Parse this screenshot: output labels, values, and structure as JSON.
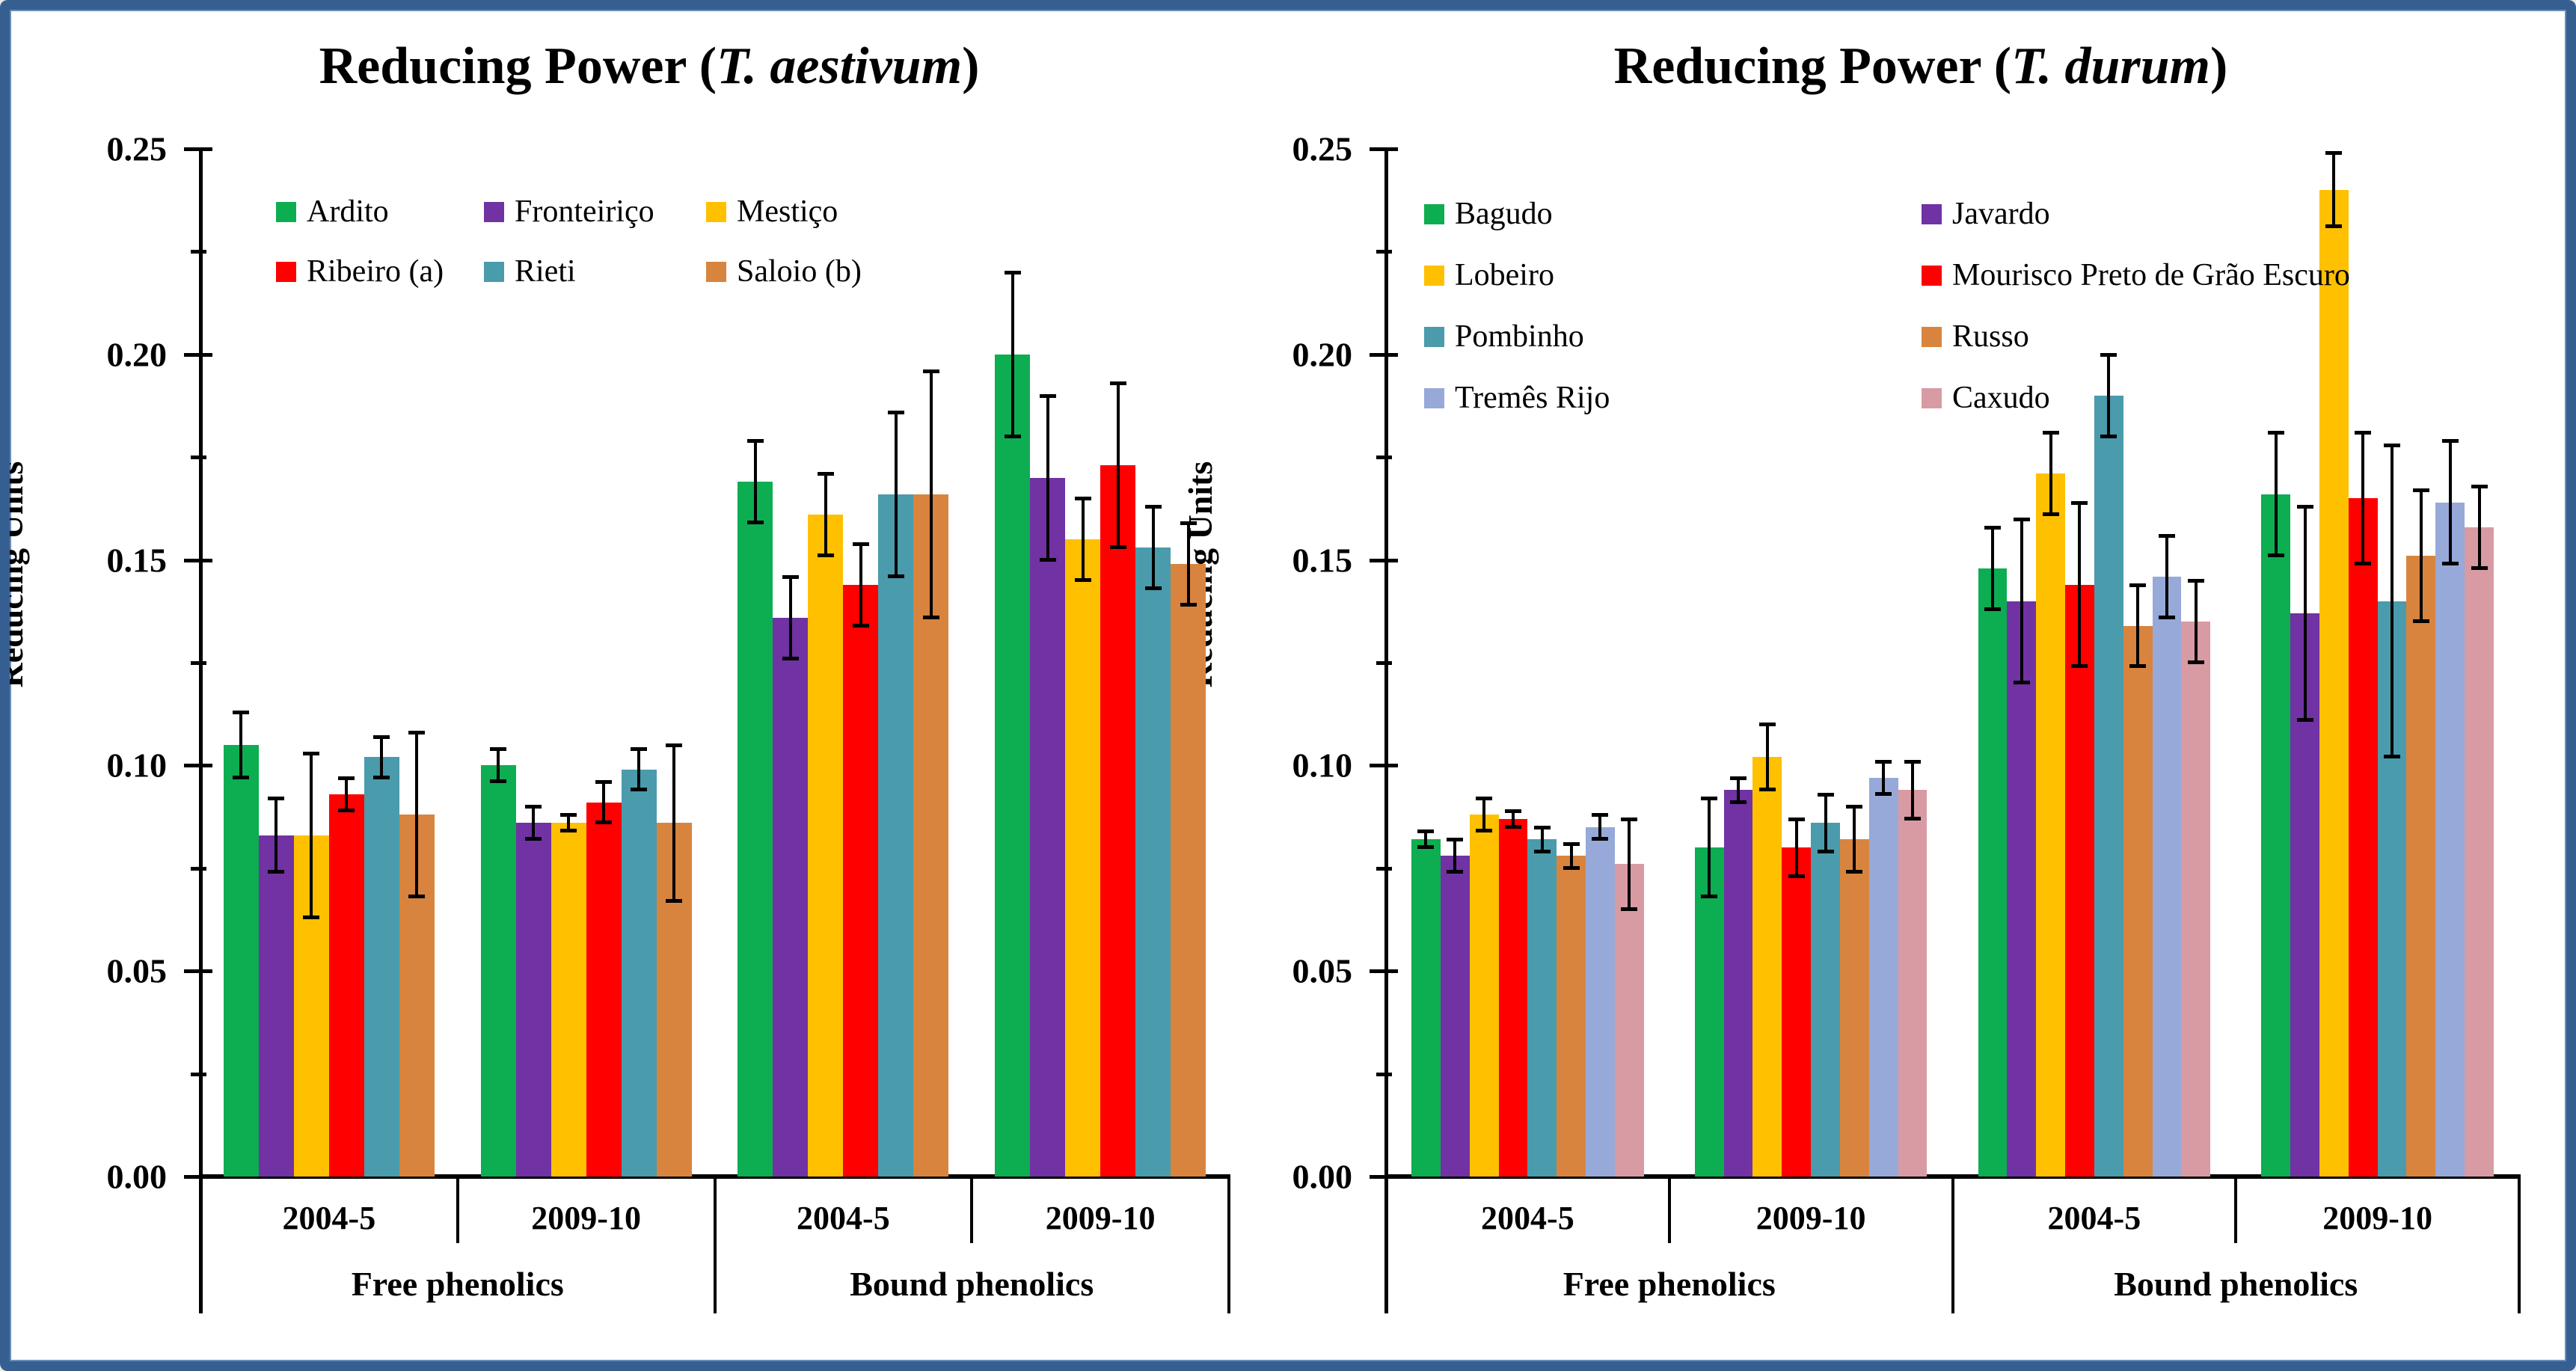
{
  "page": {
    "background": "#FFFFFF",
    "frame_border_color": "#365F91"
  },
  "chart_data": [
    {
      "type": "bar",
      "title_prefix": "Reducing Power (",
      "title_italic": "T. aestivum",
      "title_suffix": ")",
      "title": "Reducing Power (T. aestivum)",
      "xlabel": "",
      "ylabel": "Reducing Units",
      "ylim": [
        0,
        0.25
      ],
      "ytick_step": 0.05,
      "ytick_minor_step": 0.025,
      "ytick_decimals": 2,
      "ytick_labels": [
        "0.00",
        "0.05",
        "0.10",
        "0.15",
        "0.20",
        "0.25"
      ],
      "grid": false,
      "legend_position": "top-inside",
      "legend_columns": 3,
      "error_bars": true,
      "group_labels": [
        "2004-5",
        "2009-10",
        "2004-5",
        "2009-10"
      ],
      "super_group_labels": [
        "Free phenolics",
        "Bound phenolics"
      ],
      "series": [
        {
          "name": "Ardito",
          "color": "#0DAD52",
          "values": [
            0.105,
            0.1,
            0.169,
            0.2
          ],
          "errors": [
            0.008,
            0.004,
            0.01,
            0.02
          ]
        },
        {
          "name": "Fronteiriço",
          "color": "#7132A3",
          "values": [
            0.083,
            0.086,
            0.136,
            0.17
          ],
          "errors": [
            0.009,
            0.004,
            0.01,
            0.02
          ]
        },
        {
          "name": "Mestiço",
          "color": "#FFC000",
          "values": [
            0.083,
            0.086,
            0.161,
            0.155
          ],
          "errors": [
            0.02,
            0.002,
            0.01,
            0.01
          ]
        },
        {
          "name": "Ribeiro (a)",
          "color": "#FE0000",
          "values": [
            0.093,
            0.091,
            0.144,
            0.173
          ],
          "errors": [
            0.004,
            0.005,
            0.01,
            0.02
          ]
        },
        {
          "name": "Rieti",
          "color": "#4A9BAC",
          "values": [
            0.102,
            0.099,
            0.166,
            0.153
          ],
          "errors": [
            0.005,
            0.005,
            0.02,
            0.01
          ]
        },
        {
          "name": "Saloio (b)",
          "color": "#D8843E",
          "values": [
            0.088,
            0.086,
            0.166,
            0.149
          ],
          "errors": [
            0.02,
            0.019,
            0.03,
            0.01
          ]
        }
      ]
    },
    {
      "type": "bar",
      "title_prefix": "Reducing Power (",
      "title_italic": "T. durum",
      "title_suffix": ")",
      "title": "Reducing Power (T. durum)",
      "xlabel": "",
      "ylabel": "Reducing Units",
      "ylim": [
        0,
        0.25
      ],
      "ytick_step": 0.05,
      "ytick_minor_step": 0.025,
      "ytick_decimals": 2,
      "ytick_labels": [
        "0.00",
        "0.05",
        "0.10",
        "0.15",
        "0.20",
        "0.25"
      ],
      "grid": false,
      "legend_position": "top-inside",
      "legend_columns": 2,
      "error_bars": true,
      "group_labels": [
        "2004-5",
        "2009-10",
        "2004-5",
        "2009-10"
      ],
      "super_group_labels": [
        "Free phenolics",
        "Bound phenolics"
      ],
      "series": [
        {
          "name": "Bagudo",
          "color": "#0DAD52",
          "values": [
            0.082,
            0.08,
            0.148,
            0.166
          ],
          "errors": [
            0.002,
            0.012,
            0.01,
            0.015
          ]
        },
        {
          "name": "Javardo",
          "color": "#7132A3",
          "values": [
            0.078,
            0.094,
            0.14,
            0.137
          ],
          "errors": [
            0.004,
            0.003,
            0.02,
            0.026
          ]
        },
        {
          "name": "Lobeiro",
          "color": "#FFC000",
          "values": [
            0.088,
            0.102,
            0.171,
            0.24
          ],
          "errors": [
            0.004,
            0.008,
            0.01,
            0.009
          ]
        },
        {
          "name": "Mourisco Preto de Grão Escuro",
          "color": "#FE0000",
          "values": [
            0.087,
            0.08,
            0.144,
            0.165
          ],
          "errors": [
            0.002,
            0.007,
            0.02,
            0.016
          ]
        },
        {
          "name": "Pombinho",
          "color": "#4A9BAC",
          "values": [
            0.082,
            0.086,
            0.19,
            0.14
          ],
          "errors": [
            0.003,
            0.007,
            0.01,
            0.038
          ]
        },
        {
          "name": "Russo",
          "color": "#D8843E",
          "values": [
            0.078,
            0.082,
            0.134,
            0.151
          ],
          "errors": [
            0.003,
            0.008,
            0.01,
            0.016
          ]
        },
        {
          "name": "Tremês Rijo",
          "color": "#97A9D8",
          "values": [
            0.085,
            0.097,
            0.146,
            0.164
          ],
          "errors": [
            0.003,
            0.004,
            0.01,
            0.015
          ]
        },
        {
          "name": "Caxudo",
          "color": "#D89BA3",
          "values": [
            0.076,
            0.094,
            0.135,
            0.158
          ],
          "errors": [
            0.011,
            0.007,
            0.01,
            0.01
          ]
        }
      ]
    }
  ]
}
